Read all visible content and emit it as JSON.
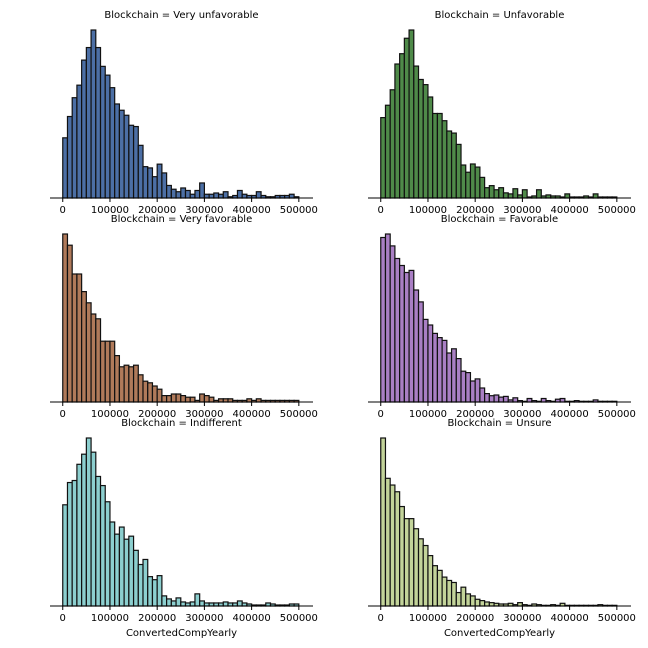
{
  "chart_data": [
    {
      "type": "bar",
      "title": "Blockchain = Very unfavorable",
      "xlabel": "",
      "color": "#4c6fa5",
      "xlim": [
        -27000,
        530000
      ],
      "xticks": [
        0,
        100000,
        200000,
        300000,
        400000,
        500000
      ],
      "xtick_labels": [
        "0",
        "100000",
        "200000",
        "300000",
        "400000",
        "500000"
      ],
      "bin_start": 0,
      "bin_width": 10000,
      "values": [
        48,
        65,
        80,
        90,
        110,
        120,
        134,
        120,
        105,
        98,
        88,
        75,
        70,
        66,
        58,
        57,
        42,
        25,
        24,
        17,
        27,
        20,
        10,
        7,
        5,
        8,
        6,
        3,
        6,
        12,
        3,
        3,
        4,
        3,
        5,
        1,
        2,
        6,
        3,
        2,
        2,
        5,
        2,
        1,
        1,
        2,
        2,
        2,
        3,
        1
      ]
    },
    {
      "type": "bar",
      "title": "Blockchain = Unfavorable",
      "xlabel": "",
      "color": "#4f8a49",
      "xlim": [
        -27000,
        530000
      ],
      "xticks": [
        0,
        100000,
        200000,
        300000,
        400000,
        500000
      ],
      "xtick_labels": [
        "0",
        "100000",
        "200000",
        "300000",
        "400000",
        "500000"
      ],
      "bin_start": 0,
      "bin_width": 10000,
      "values": [
        78,
        90,
        105,
        130,
        140,
        155,
        163,
        128,
        115,
        110,
        98,
        82,
        82,
        75,
        65,
        63,
        52,
        32,
        25,
        33,
        30,
        20,
        10,
        12,
        8,
        10,
        5,
        4,
        9,
        3,
        8,
        1,
        2,
        8,
        2,
        3,
        2,
        2,
        1,
        4,
        1,
        1,
        1,
        2,
        1,
        4,
        1,
        1,
        1,
        1
      ]
    },
    {
      "type": "bar",
      "title": "Blockchain = Very favorable",
      "xlabel": "",
      "color": "#b07a5a",
      "xlim": [
        -27000,
        530000
      ],
      "xticks": [
        0,
        100000,
        200000,
        300000,
        400000,
        500000
      ],
      "xtick_labels": [
        "0",
        "100000",
        "200000",
        "300000",
        "400000",
        "500000"
      ],
      "bin_start": 0,
      "bin_width": 10000,
      "values": [
        105,
        98,
        80,
        80,
        69,
        62,
        55,
        52,
        38,
        38,
        38,
        29,
        22,
        23,
        22,
        23,
        17,
        13,
        12,
        10,
        8,
        4,
        4,
        5,
        5,
        4,
        3,
        3,
        1,
        5,
        4,
        3,
        1,
        2,
        2,
        2,
        1,
        1,
        1,
        2,
        1,
        2,
        1,
        1,
        1,
        1,
        1,
        1,
        1,
        1
      ]
    },
    {
      "type": "bar",
      "title": "Blockchain = Favorable",
      "xlabel": "",
      "color": "#a97fc4",
      "xlim": [
        -27000,
        530000
      ],
      "xticks": [
        0,
        100000,
        200000,
        300000,
        400000,
        500000
      ],
      "xtick_labels": [
        "0",
        "100000",
        "200000",
        "300000",
        "400000",
        "500000"
      ],
      "bin_start": 0,
      "bin_width": 10000,
      "values": [
        235,
        240,
        223,
        205,
        195,
        185,
        188,
        160,
        143,
        118,
        110,
        98,
        92,
        88,
        70,
        76,
        62,
        44,
        42,
        30,
        33,
        20,
        12,
        9,
        10,
        7,
        8,
        3,
        6,
        2,
        1,
        5,
        2,
        1,
        5,
        2,
        1,
        4,
        5,
        1,
        1,
        2,
        1,
        1,
        1,
        3,
        1,
        1,
        1,
        1
      ]
    },
    {
      "type": "bar",
      "title": "Blockchain = Indifferent",
      "xlabel": "ConvertedCompYearly",
      "color": "#8ccfcf",
      "xlim": [
        -27000,
        530000
      ],
      "xticks": [
        0,
        100000,
        200000,
        300000,
        400000,
        500000
      ],
      "xtick_labels": [
        "0",
        "100000",
        "200000",
        "300000",
        "400000",
        "500000"
      ],
      "bin_start": 0,
      "bin_width": 10000,
      "values": [
        100,
        122,
        124,
        140,
        150,
        166,
        152,
        128,
        119,
        103,
        83,
        71,
        78,
        66,
        69,
        55,
        41,
        46,
        29,
        26,
        30,
        10,
        7,
        5,
        8,
        4,
        3,
        4,
        12,
        5,
        3,
        3,
        3,
        3,
        4,
        3,
        3,
        5,
        3,
        2,
        1,
        1,
        1,
        3,
        2,
        1,
        1,
        1,
        2,
        2
      ]
    },
    {
      "type": "bar",
      "title": "Blockchain = Unsure",
      "xlabel": "ConvertedCompYearly",
      "color": "#c3d49a",
      "xlim": [
        -27000,
        530000
      ],
      "xticks": [
        0,
        100000,
        200000,
        300000,
        400000,
        500000
      ],
      "xtick_labels": [
        "0",
        "100000",
        "200000",
        "300000",
        "400000",
        "500000"
      ],
      "bin_start": 0,
      "bin_width": 10000,
      "values": [
        250,
        190,
        180,
        170,
        148,
        130,
        130,
        115,
        100,
        90,
        75,
        60,
        53,
        43,
        38,
        35,
        20,
        28,
        18,
        15,
        10,
        8,
        6,
        5,
        4,
        3,
        3,
        4,
        2,
        5,
        2,
        1,
        3,
        2,
        1,
        1,
        2,
        1,
        4,
        1,
        1,
        1,
        1,
        1,
        1,
        1,
        2,
        1,
        1,
        1
      ]
    }
  ]
}
